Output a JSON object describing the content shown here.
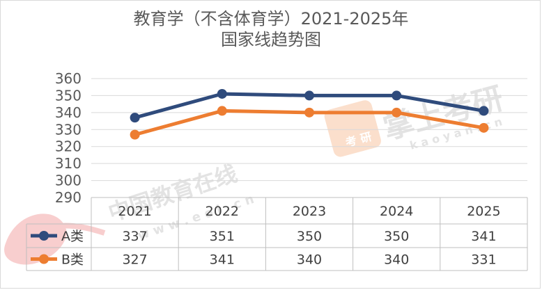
{
  "chart_data": {
    "type": "line",
    "title_line1": "教育学（不含体育学）2021-2025年",
    "title_line2": "国家线趋势图",
    "categories": [
      "2021",
      "2022",
      "2023",
      "2024",
      "2025"
    ],
    "series": [
      {
        "name": "A类",
        "color": "#2F4B7C",
        "values": [
          337,
          351,
          350,
          350,
          341
        ]
      },
      {
        "name": "B类",
        "color": "#ED7D31",
        "values": [
          327,
          341,
          340,
          340,
          331
        ]
      }
    ],
    "ylim": [
      290,
      360
    ],
    "yticks": [
      360,
      350,
      340,
      330,
      320,
      310,
      300,
      290
    ],
    "grid": true,
    "data_table": true
  },
  "watermarks": {
    "center_text": "中国教育在线",
    "center_url": "w w w . e o l . c n",
    "right_text": "掌上考研",
    "right_url": "k a o y a n . c n",
    "badge_line1": "考",
    "badge_line2": "研"
  }
}
